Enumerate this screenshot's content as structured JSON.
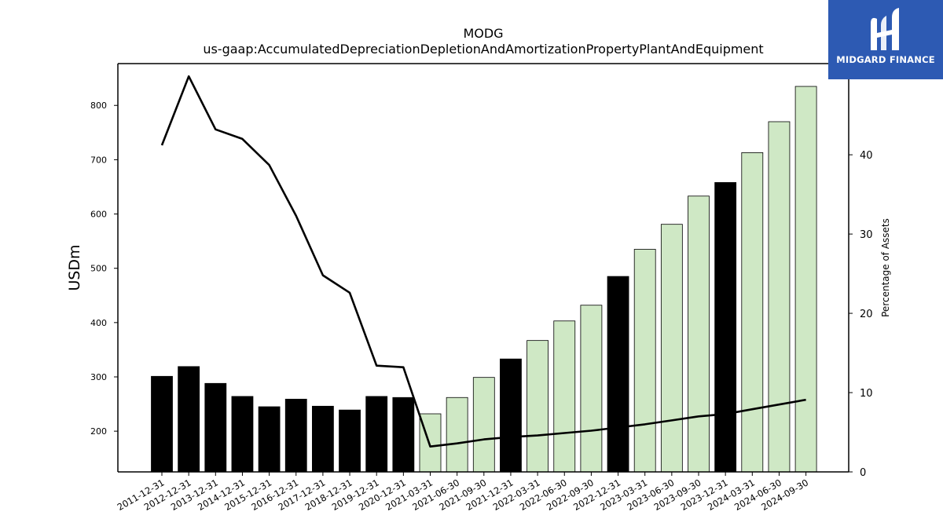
{
  "chart_data": {
    "type": "bar",
    "title": "MODG",
    "subtitle": "us-gaap:AccumulatedDepreciationDepletionAndAmortizationPropertyPlantAndEquipment",
    "ylabel": "USDm",
    "y2label": "Percentage of Assets",
    "ylim": [
      125,
      877
    ],
    "y2lim": [
      0,
      51.5
    ],
    "yticks": [
      200,
      300,
      400,
      500,
      600,
      700,
      800
    ],
    "y2ticks": [
      0,
      10,
      20,
      30,
      40
    ],
    "grid": false,
    "categories": [
      "2011-12-31",
      "2012-12-31",
      "2013-12-31",
      "2014-12-31",
      "2015-12-31",
      "2016-12-31",
      "2017-12-31",
      "2018-12-31",
      "2019-12-31",
      "2020-12-31",
      "2021-03-31",
      "2021-06-30",
      "2021-09-30",
      "2021-12-31",
      "2022-03-31",
      "2022-06-30",
      "2022-09-30",
      "2022-12-31",
      "2023-03-31",
      "2023-06-30",
      "2023-09-30",
      "2023-12-31",
      "2024-03-31",
      "2024-06-30",
      "2024-09-30"
    ],
    "series": [
      {
        "type": "bar",
        "values": [
          301,
          319,
          288,
          264,
          245,
          259,
          246,
          239,
          264,
          262,
          232,
          262,
          299,
          333,
          367,
          403,
          432,
          485,
          535,
          581,
          633,
          658,
          713,
          770,
          835
        ],
        "period": [
          "annual",
          "annual",
          "annual",
          "annual",
          "annual",
          "annual",
          "annual",
          "annual",
          "annual",
          "annual",
          "quarterly",
          "quarterly",
          "quarterly",
          "annual",
          "quarterly",
          "quarterly",
          "quarterly",
          "annual",
          "quarterly",
          "quarterly",
          "quarterly",
          "annual",
          "quarterly",
          "quarterly",
          "quarterly"
        ]
      },
      {
        "type": "line",
        "axis": "right",
        "values": [
          41.2,
          49.9,
          43.2,
          42.0,
          38.7,
          32.3,
          24.8,
          22.6,
          13.4,
          13.2,
          3.2,
          3.6,
          4.1,
          4.4,
          4.6,
          4.9,
          5.2,
          5.6,
          6.0,
          6.5,
          7.0,
          7.3,
          7.9,
          8.5,
          9.1
        ]
      }
    ],
    "colors": {
      "annual_bar": "#000000",
      "quarterly_bar": "#cfe8c5",
      "bar_edge": "#000000",
      "line": "#000000"
    }
  },
  "logo": {
    "text": "MIDGARD FINANCE",
    "background": "#2d5ab3"
  }
}
